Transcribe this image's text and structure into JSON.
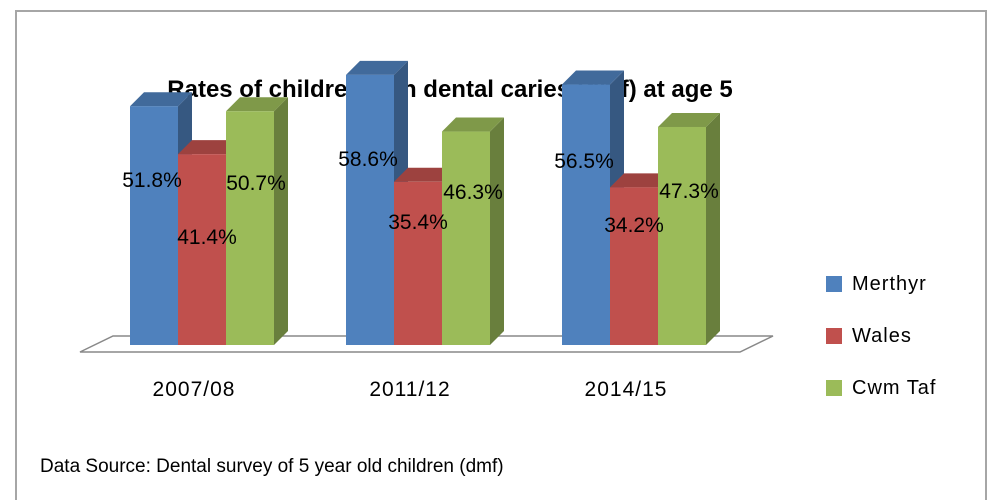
{
  "chart_data": {
    "type": "bar",
    "title": "Rates of children with dental caries (dmf) at age 5",
    "categories": [
      "2007/08",
      "2011/12",
      "2014/15"
    ],
    "series": [
      {
        "name": "Merthyr",
        "color": "#4f81bd",
        "values": [
          51.8,
          58.6,
          56.5
        ],
        "labels": [
          "51.8%",
          "58.6%",
          "56.5%"
        ]
      },
      {
        "name": "Wales",
        "color": "#c0504d",
        "values": [
          41.4,
          35.4,
          34.2
        ],
        "labels": [
          "41.4%",
          "35.4%",
          "34.2%"
        ]
      },
      {
        "name": "Cwm Taf",
        "color": "#9bbb59",
        "values": [
          50.7,
          46.3,
          47.3
        ],
        "labels": [
          "50.7%",
          "46.3%",
          "47.3%"
        ]
      }
    ],
    "ylim": [
      0,
      70
    ],
    "grid": false,
    "legend": "right",
    "source": "Data Source: Dental survey of 5 year old children (dmf)"
  }
}
